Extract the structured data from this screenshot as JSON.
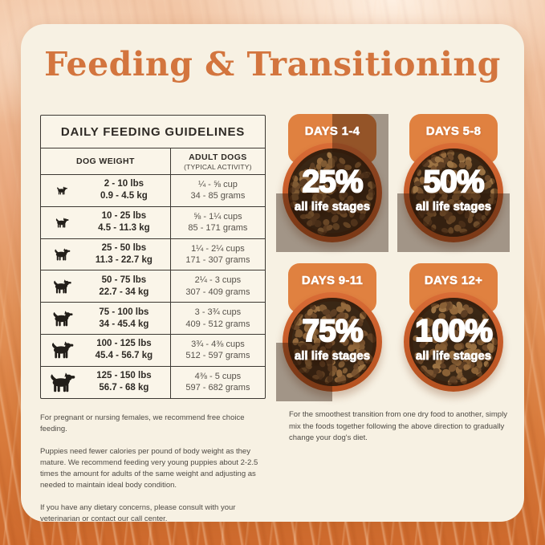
{
  "title": "Feeding & Transitioning",
  "table": {
    "title": "DAILY FEEDING GUIDELINES",
    "columns": {
      "weight": "DOG WEIGHT",
      "adult_line1": "ADULT DOGS",
      "adult_line2": "(TYPICAL ACTIVITY)"
    },
    "rows": [
      {
        "dog_icon": "dog-silhouette",
        "dog_icon_size": 16,
        "lbs": "2 - 10 lbs",
        "kg": "0.9 - 4.5 kg",
        "cups": "¼ - ⅝ cup",
        "grams": "34 - 85 grams"
      },
      {
        "dog_icon": "dog-silhouette",
        "dog_icon_size": 20,
        "lbs": "10 - 25 lbs",
        "kg": "4.5 - 11.3 kg",
        "cups": "⅝ - 1¼ cups",
        "grams": "85 - 171 grams"
      },
      {
        "dog_icon": "dog-silhouette",
        "dog_icon_size": 24,
        "lbs": "25 - 50 lbs",
        "kg": "11.3 - 22.7 kg",
        "cups": "1¼ - 2¼ cups",
        "grams": "171 - 307 grams"
      },
      {
        "dog_icon": "dog-silhouette",
        "dog_icon_size": 28,
        "lbs": "50 - 75 lbs",
        "kg": "22.7 - 34 kg",
        "cups": "2¼ - 3 cups",
        "grams": "307 - 409 grams"
      },
      {
        "dog_icon": "dog-silhouette",
        "dog_icon_size": 31,
        "lbs": "75 - 100 lbs",
        "kg": "34 - 45.4 kg",
        "cups": "3 - 3¾ cups",
        "grams": "409 - 512 grams"
      },
      {
        "dog_icon": "dog-silhouette",
        "dog_icon_size": 34,
        "lbs": "100 - 125 lbs",
        "kg": "45.4 - 56.7 kg",
        "cups": "3¾ - 4⅜ cups",
        "grams": "512 - 597 grams"
      },
      {
        "dog_icon": "dog-silhouette",
        "dog_icon_size": 38,
        "lbs": "125 - 150 lbs",
        "kg": "56.7 - 68 kg",
        "cups": "4⅜ - 5 cups",
        "grams": "597 - 682 grams"
      }
    ]
  },
  "transition_cards": [
    {
      "days": "DAYS 1-4",
      "percent": "25%",
      "label": "all life stages",
      "fill_percent": 25
    },
    {
      "days": "DAYS 5-8",
      "percent": "50%",
      "label": "all life stages",
      "fill_percent": 50
    },
    {
      "days": "DAYS 9-11",
      "percent": "75%",
      "label": "all life stages",
      "fill_percent": 75
    },
    {
      "days": "DAYS 12+",
      "percent": "100%",
      "label": "all life stages",
      "fill_percent": 100
    }
  ],
  "notes_left": [
    "For pregnant or nursing females, we recommend free choice feeding.",
    "Puppies need fewer calories per pound of body weight as they mature. We recommend feeding very young puppies about 2-2.5 times the amount for adults of the same weight and adjusting as needed to maintain ideal body condition.",
    "If you have any dietary concerns, please consult with your veterinarian or contact our call center."
  ],
  "note_right": "For the smoothest transition from one dry food to another, simply mix the foods together following the above direction to gradually change your dog's diet.",
  "colors": {
    "accent_orange": "#d3753e",
    "banner_orange": "#e08140",
    "bowl_orange": "#c85d2b",
    "card_cream": "#f7f1e3",
    "text_dark": "#2e2a25",
    "text_muted": "#56514a",
    "table_line": "#3c3832",
    "kibble_bg": "#3a2715",
    "shade_overlay": "rgba(44,22,8,0.42)"
  }
}
